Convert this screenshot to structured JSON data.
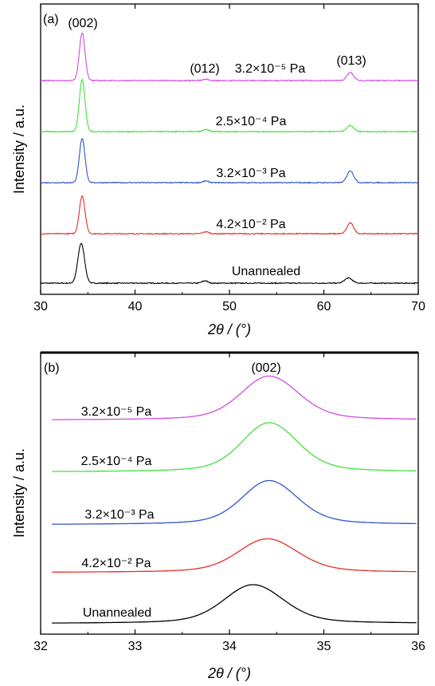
{
  "figure": {
    "colors": {
      "unannealed": "#000000",
      "p_4_2e_2": "#e0302a",
      "p_3_2e_3": "#2e56c8",
      "p_2_5e_4": "#44e03c",
      "p_3_2e_5": "#d04ce0"
    }
  },
  "chart_data": [
    {
      "type": "line",
      "panel_label": "(a)",
      "xlabel": "2θ / (°)",
      "ylabel": "Intensity / a.u.",
      "xlim": [
        30,
        70
      ],
      "x_ticks": [
        "30",
        "40",
        "50",
        "60",
        "70"
      ],
      "y_ticks": [],
      "grid": false,
      "annotations": [
        "(002)",
        "(012)",
        "(013)"
      ],
      "series": [
        {
          "name": "Unannealed",
          "color": "#000000",
          "offset": 0,
          "peaks": [
            {
              "center": 34.3,
              "height": 1.0,
              "width": 0.35
            },
            {
              "center": 47.4,
              "height": 0.06,
              "width": 0.3
            },
            {
              "center": 62.6,
              "height": 0.13,
              "width": 0.4
            }
          ]
        },
        {
          "name": "4.2×10⁻² Pa",
          "color": "#e0302a",
          "offset": 1,
          "peaks": [
            {
              "center": 34.4,
              "height": 0.95,
              "width": 0.3
            },
            {
              "center": 47.5,
              "height": 0.05,
              "width": 0.3
            },
            {
              "center": 62.8,
              "height": 0.27,
              "width": 0.35
            }
          ]
        },
        {
          "name": "3.2×10⁻³ Pa",
          "color": "#2e56c8",
          "offset": 2,
          "peaks": [
            {
              "center": 34.4,
              "height": 1.1,
              "width": 0.3
            },
            {
              "center": 47.5,
              "height": 0.04,
              "width": 0.3
            },
            {
              "center": 62.8,
              "height": 0.3,
              "width": 0.35
            }
          ]
        },
        {
          "name": "2.5×10⁻⁴ Pa",
          "color": "#44e03c",
          "offset": 3,
          "peaks": [
            {
              "center": 34.4,
              "height": 1.3,
              "width": 0.3
            },
            {
              "center": 47.5,
              "height": 0.05,
              "width": 0.3
            },
            {
              "center": 62.8,
              "height": 0.16,
              "width": 0.35
            }
          ]
        },
        {
          "name": "3.2×10⁻⁵ Pa",
          "color": "#d04ce0",
          "offset": 4,
          "peaks": [
            {
              "center": 34.4,
              "height": 1.2,
              "width": 0.3
            },
            {
              "center": 47.5,
              "height": 0.03,
              "width": 0.3
            },
            {
              "center": 62.8,
              "height": 0.2,
              "width": 0.35
            }
          ]
        }
      ]
    },
    {
      "type": "line",
      "panel_label": "(b)",
      "xlabel": "2θ / (°)",
      "ylabel": "Intensity / a.u.",
      "xlim": [
        32,
        36
      ],
      "x_ticks": [
        "32",
        "33",
        "34",
        "35",
        "36"
      ],
      "y_ticks": [],
      "grid": false,
      "annotations": [
        "(002)"
      ],
      "series": [
        {
          "name": "Unannealed",
          "color": "#000000",
          "offset": 0,
          "peak": {
            "center": 34.25,
            "height": 0.75,
            "width": 0.3
          }
        },
        {
          "name": "4.2×10⁻² Pa",
          "color": "#e0302a",
          "offset": 1,
          "peak": {
            "center": 34.4,
            "height": 0.65,
            "width": 0.3
          }
        },
        {
          "name": "3.2×10⁻³ Pa",
          "color": "#2e56c8",
          "offset": 2,
          "peak": {
            "center": 34.42,
            "height": 0.85,
            "width": 0.28
          }
        },
        {
          "name": "2.5×10⁻⁴ Pa",
          "color": "#44e03c",
          "offset": 3,
          "peak": {
            "center": 34.42,
            "height": 0.95,
            "width": 0.28
          }
        },
        {
          "name": "3.2×10⁻⁵ Pa",
          "color": "#d04ce0",
          "offset": 4,
          "peak": {
            "center": 34.42,
            "height": 0.85,
            "width": 0.29
          }
        }
      ]
    }
  ]
}
